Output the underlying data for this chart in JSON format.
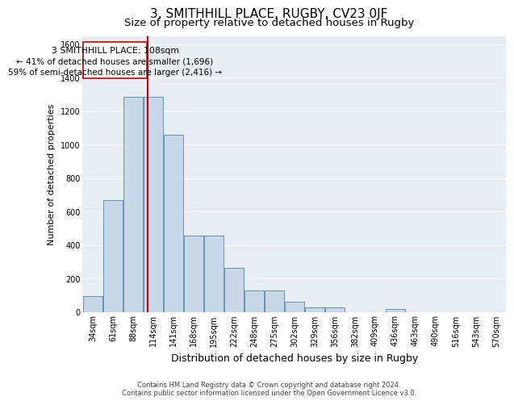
{
  "title": "3, SMITHHILL PLACE, RUGBY, CV23 0JF",
  "subtitle": "Size of property relative to detached houses in Rugby",
  "xlabel": "Distribution of detached houses by size in Rugby",
  "ylabel": "Number of detached properties",
  "footer_line1": "Contains HM Land Registry data © Crown copyright and database right 2024.",
  "footer_line2": "Contains public sector information licensed under the Open Government Licence v3.0.",
  "categories": [
    "34sqm",
    "61sqm",
    "88sqm",
    "114sqm",
    "141sqm",
    "168sqm",
    "195sqm",
    "222sqm",
    "248sqm",
    "275sqm",
    "302sqm",
    "329sqm",
    "356sqm",
    "382sqm",
    "409sqm",
    "436sqm",
    "463sqm",
    "490sqm",
    "516sqm",
    "543sqm",
    "570sqm"
  ],
  "values": [
    95,
    670,
    1285,
    1285,
    1060,
    460,
    460,
    265,
    130,
    130,
    65,
    30,
    30,
    0,
    0,
    20,
    0,
    0,
    0,
    0,
    0
  ],
  "bar_color": "#c8d8e8",
  "bar_edge_color": "#5588aa",
  "vline_color": "#cc0000",
  "property_sqm": 108,
  "annotation_text_line1": "3 SMITHHILL PLACE: 108sqm",
  "annotation_text_line2": "← 41% of detached houses are smaller (1,696)",
  "annotation_text_line3": "59% of semi-detached houses are larger (2,416) →",
  "ylim": [
    0,
    1650
  ],
  "yticks": [
    0,
    200,
    400,
    600,
    800,
    1000,
    1200,
    1400,
    1600
  ],
  "background_color": "#e8eef4",
  "grid_color": "#ffffff",
  "title_fontsize": 11,
  "subtitle_fontsize": 9.5,
  "axis_label_fontsize": 8,
  "tick_fontsize": 7,
  "annotation_fontsize": 7.5,
  "footer_fontsize": 6
}
